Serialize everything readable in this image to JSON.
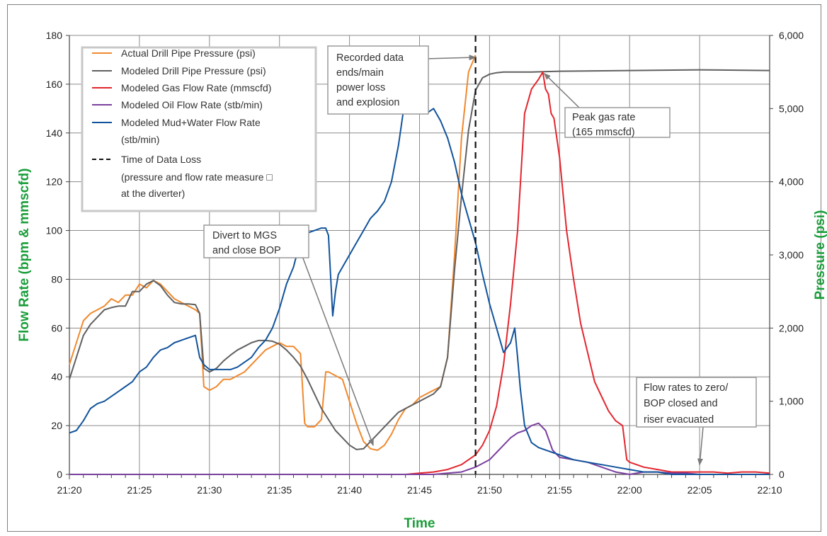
{
  "chart_data": {
    "type": "line",
    "xlabel": "Time",
    "ylabel_left": "Flow Rate (bpm & mmscfd)",
    "ylabel_right": "Pressure (psi)",
    "ylim_left": [
      0,
      180
    ],
    "ylim_right": [
      0,
      6000
    ],
    "xlim": [
      "21:20",
      "22:10"
    ],
    "x_ticks": [
      "21:20",
      "21:25",
      "21:30",
      "21:35",
      "21:40",
      "21:45",
      "21:50",
      "21:55",
      "22:00",
      "22:05",
      "22:10"
    ],
    "y_ticks_left": [
      "0",
      "20",
      "40",
      "60",
      "80",
      "100",
      "120",
      "140",
      "160",
      "180"
    ],
    "y_ticks_right": [
      "0",
      "1,000",
      "2,000",
      "3,000",
      "4,000",
      "5,000",
      "6,000"
    ],
    "grid": true,
    "legend_position": "top-left",
    "legend": [
      "Actual Drill Pipe Pressure (psi)",
      "Modeled Drill Pipe Pressure (psi)",
      "Modeled Gas Flow Rate (mmscfd)",
      "Modeled Oil Flow Rate (stb/min)",
      "Modeled Mud+Water Flow Rate",
      "(stb/min)",
      "Time of Data Loss",
      "(pressure and flow rate measure □",
      "at the diverter)"
    ],
    "data_loss_time": "21:49",
    "annotations": [
      {
        "lines": [
          "Recorded data",
          "ends/main",
          "power loss",
          "and explosion"
        ],
        "target": [
          "21:49",
          5700
        ]
      },
      {
        "lines": [
          "Peak gas rate",
          "(165 mmscfd)"
        ],
        "target": [
          "21:53.8",
          165
        ]
      },
      {
        "lines": [
          "Divert to MGS",
          "and close BOP"
        ],
        "target": [
          "21:42",
          11
        ]
      },
      {
        "lines": [
          "Flow rates to zero/",
          "BOP closed and",
          "riser evacuated"
        ],
        "target": [
          "22:05",
          3
        ]
      }
    ],
    "series": [
      {
        "name": "Actual Drill Pipe Pressure (psi)",
        "axis": "right",
        "color": "#f0892e",
        "x": [
          0,
          0.5,
          1,
          1.5,
          2,
          2.5,
          3,
          3.5,
          4,
          4.5,
          5,
          5.5,
          6,
          6.5,
          7,
          7.5,
          8,
          8.5,
          9,
          9.3,
          9.6,
          10,
          10.5,
          11,
          11.5,
          12,
          12.5,
          13,
          13.5,
          14,
          14.5,
          15,
          15.5,
          16,
          16.5,
          16.8,
          17,
          17.5,
          18,
          18.3,
          18.5,
          19,
          19.5,
          20,
          20.5,
          21,
          21.5,
          22,
          22.5,
          23,
          23.5,
          24,
          24.5,
          25,
          25.5,
          26,
          26.5,
          27,
          27.5,
          28,
          28.5,
          29
        ],
        "y": [
          1500,
          1800,
          2100,
          2200,
          2250,
          2300,
          2400,
          2350,
          2450,
          2450,
          2600,
          2550,
          2650,
          2600,
          2500,
          2400,
          2350,
          2300,
          2250,
          2200,
          1200,
          1150,
          1200,
          1300,
          1300,
          1350,
          1400,
          1500,
          1600,
          1700,
          1750,
          1800,
          1750,
          1750,
          1650,
          700,
          650,
          650,
          750,
          1400,
          1400,
          1350,
          1300,
          1000,
          700,
          450,
          350,
          330,
          400,
          550,
          750,
          900,
          950,
          1050,
          1100,
          1150,
          1200,
          1600,
          3000,
          4600,
          5500,
          5730
        ]
      },
      {
        "name": "Modeled Drill Pipe Pressure (psi)",
        "axis": "right",
        "color": "#606060",
        "x": [
          0,
          0.5,
          1,
          1.5,
          2,
          2.5,
          3,
          3.5,
          4,
          4.5,
          5,
          5.5,
          6,
          6.5,
          7,
          7.5,
          8,
          8.5,
          9,
          9.3,
          9.6,
          10,
          10.5,
          11,
          11.5,
          12,
          12.5,
          13,
          13.5,
          14,
          14.5,
          15,
          15.5,
          16,
          16.5,
          17,
          17.5,
          18,
          18.5,
          19,
          19.5,
          20,
          20.5,
          21,
          21.5,
          22,
          22.5,
          23,
          23.5,
          24,
          24.5,
          25,
          25.5,
          26,
          26.5,
          27,
          27.5,
          28,
          28.5,
          29,
          29.5,
          30,
          30.5,
          31,
          32,
          33,
          35,
          40,
          45,
          50
        ],
        "y": [
          1300,
          1600,
          1900,
          2050,
          2150,
          2250,
          2280,
          2300,
          2300,
          2500,
          2500,
          2600,
          2650,
          2580,
          2450,
          2350,
          2330,
          2330,
          2320,
          2200,
          1450,
          1400,
          1450,
          1550,
          1630,
          1700,
          1750,
          1800,
          1830,
          1830,
          1820,
          1780,
          1700,
          1600,
          1480,
          1300,
          1100,
          900,
          750,
          600,
          500,
          400,
          340,
          350,
          450,
          550,
          650,
          750,
          850,
          900,
          950,
          1000,
          1050,
          1100,
          1200,
          1600,
          2800,
          3800,
          4700,
          5250,
          5420,
          5470,
          5490,
          5500,
          5500,
          5500,
          5510,
          5520,
          5530,
          5520
        ]
      },
      {
        "name": "Modeled Gas Flow Rate (mmscfd)",
        "axis": "left",
        "color": "#e3262e",
        "x": [
          0,
          24,
          25,
          26,
          27,
          28,
          29,
          29.5,
          30,
          30.5,
          31,
          31.5,
          32,
          32.5,
          33,
          33.5,
          33.8,
          34,
          34.2,
          34.4,
          34.6,
          35,
          35.5,
          36,
          36.5,
          37,
          37.5,
          38,
          38.5,
          39,
          39.5,
          39.8,
          40,
          40.5,
          41,
          42,
          43,
          44,
          45,
          46,
          47,
          48,
          49,
          50
        ],
        "y": [
          0,
          0,
          0.5,
          1,
          2,
          4,
          8,
          12,
          18,
          28,
          45,
          70,
          100,
          148,
          158,
          162,
          165,
          158,
          156,
          148,
          146,
          130,
          100,
          80,
          62,
          50,
          38,
          32,
          26,
          22,
          20,
          6,
          5,
          4,
          3,
          2,
          1,
          1,
          1,
          1,
          0.5,
          1,
          1,
          0.5
        ]
      },
      {
        "name": "Modeled Oil Flow Rate (stb/min)",
        "axis": "left",
        "color": "#7b3fa0",
        "x": [
          0,
          26,
          27,
          28,
          29,
          30,
          30.5,
          31,
          31.5,
          32,
          32.5,
          33,
          33.5,
          34,
          34.5,
          35,
          36,
          37,
          38,
          39,
          40,
          41,
          42,
          43,
          44,
          45,
          46,
          47,
          48,
          49,
          50
        ],
        "y": [
          0,
          0,
          0.5,
          1,
          3,
          6,
          9,
          12,
          15,
          17,
          18,
          20,
          21,
          18,
          10,
          7,
          6,
          5,
          3,
          1,
          0,
          1,
          1,
          0.5,
          0.5,
          0,
          0,
          0,
          0,
          0,
          0
        ]
      },
      {
        "name": "Modeled Mud+Water Flow Rate (stb/min)",
        "axis": "left",
        "color": "#11539b",
        "x": [
          0,
          0.5,
          1,
          1.5,
          2,
          2.5,
          3,
          3.5,
          4,
          4.5,
          5,
          5.5,
          6,
          6.5,
          7,
          7.5,
          8,
          8.5,
          9,
          9.3,
          9.6,
          10,
          10.5,
          11,
          11.5,
          12,
          12.5,
          13,
          13.5,
          14,
          14.5,
          15,
          15.5,
          16,
          16.5,
          17,
          17.5,
          18,
          18.3,
          18.5,
          18.8,
          19,
          19.2,
          19.5,
          20,
          20.5,
          21,
          21.5,
          22,
          22.5,
          23,
          23.5,
          24,
          24.5,
          25,
          25.5,
          26,
          26.5,
          27,
          27.5,
          28,
          28.5,
          29,
          29.5,
          30,
          30.5,
          31,
          31.5,
          31.8,
          32,
          32.2,
          32.5,
          33,
          33.5,
          34,
          34.5,
          35,
          36,
          37,
          38,
          39,
          40,
          41,
          42,
          43,
          44,
          45,
          46,
          47,
          48,
          49,
          50
        ],
        "y": [
          17,
          18,
          22,
          27,
          29,
          30,
          32,
          34,
          36,
          38,
          42,
          44,
          48,
          51,
          52,
          54,
          55,
          56,
          57,
          48,
          45,
          43,
          43,
          43,
          43,
          44,
          46,
          48,
          52,
          55,
          60,
          68,
          78,
          85,
          96,
          99,
          100,
          101,
          101,
          98,
          65,
          75,
          82,
          85,
          90,
          95,
          100,
          105,
          108,
          112,
          120,
          135,
          155,
          162,
          155,
          148,
          150,
          145,
          138,
          128,
          115,
          105,
          95,
          82,
          70,
          60,
          50,
          54,
          60,
          48,
          35,
          20,
          13,
          11,
          10,
          9,
          8,
          6,
          5,
          4,
          3,
          2,
          1,
          1,
          0,
          0,
          0,
          0,
          0,
          0,
          0,
          0
        ]
      }
    ]
  }
}
